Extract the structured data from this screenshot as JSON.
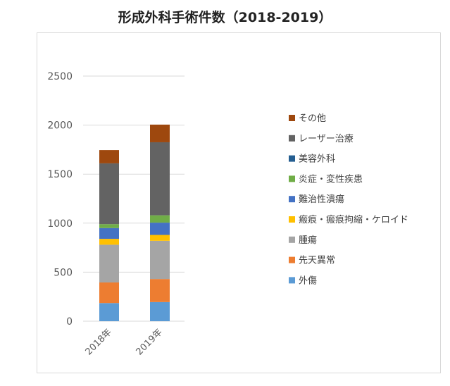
{
  "title": "形成外科手術件数（2018-2019）",
  "chart_data": {
    "type": "bar",
    "stacked": true,
    "categories": [
      "2018年",
      "2019年"
    ],
    "ylim": [
      0,
      2500
    ],
    "yticks": [
      0,
      500,
      1000,
      1500,
      2000,
      2500
    ],
    "grid": true,
    "legend_position": "right",
    "series": [
      {
        "name": "外傷",
        "color": "#5b9bd5",
        "values": [
          185,
          195
        ]
      },
      {
        "name": "先天異常",
        "color": "#ed7d31",
        "values": [
          210,
          235
        ]
      },
      {
        "name": "腫瘍",
        "color": "#a5a5a5",
        "values": [
          385,
          390
        ]
      },
      {
        "name": "瘢痕・瘢痕拘縮・ケロイド",
        "color": "#ffc000",
        "values": [
          60,
          60
        ]
      },
      {
        "name": "難治性潰瘍",
        "color": "#4472c4",
        "values": [
          110,
          125
        ]
      },
      {
        "name": "炎症・変性疾患",
        "color": "#70ad47",
        "values": [
          40,
          75
        ]
      },
      {
        "name": "美容外科",
        "color": "#255e91",
        "values": [
          0,
          0
        ]
      },
      {
        "name": "レーザー治療",
        "color": "#636363",
        "values": [
          620,
          745
        ]
      },
      {
        "name": "その他",
        "color": "#9e480e",
        "values": [
          135,
          180
        ]
      }
    ]
  }
}
